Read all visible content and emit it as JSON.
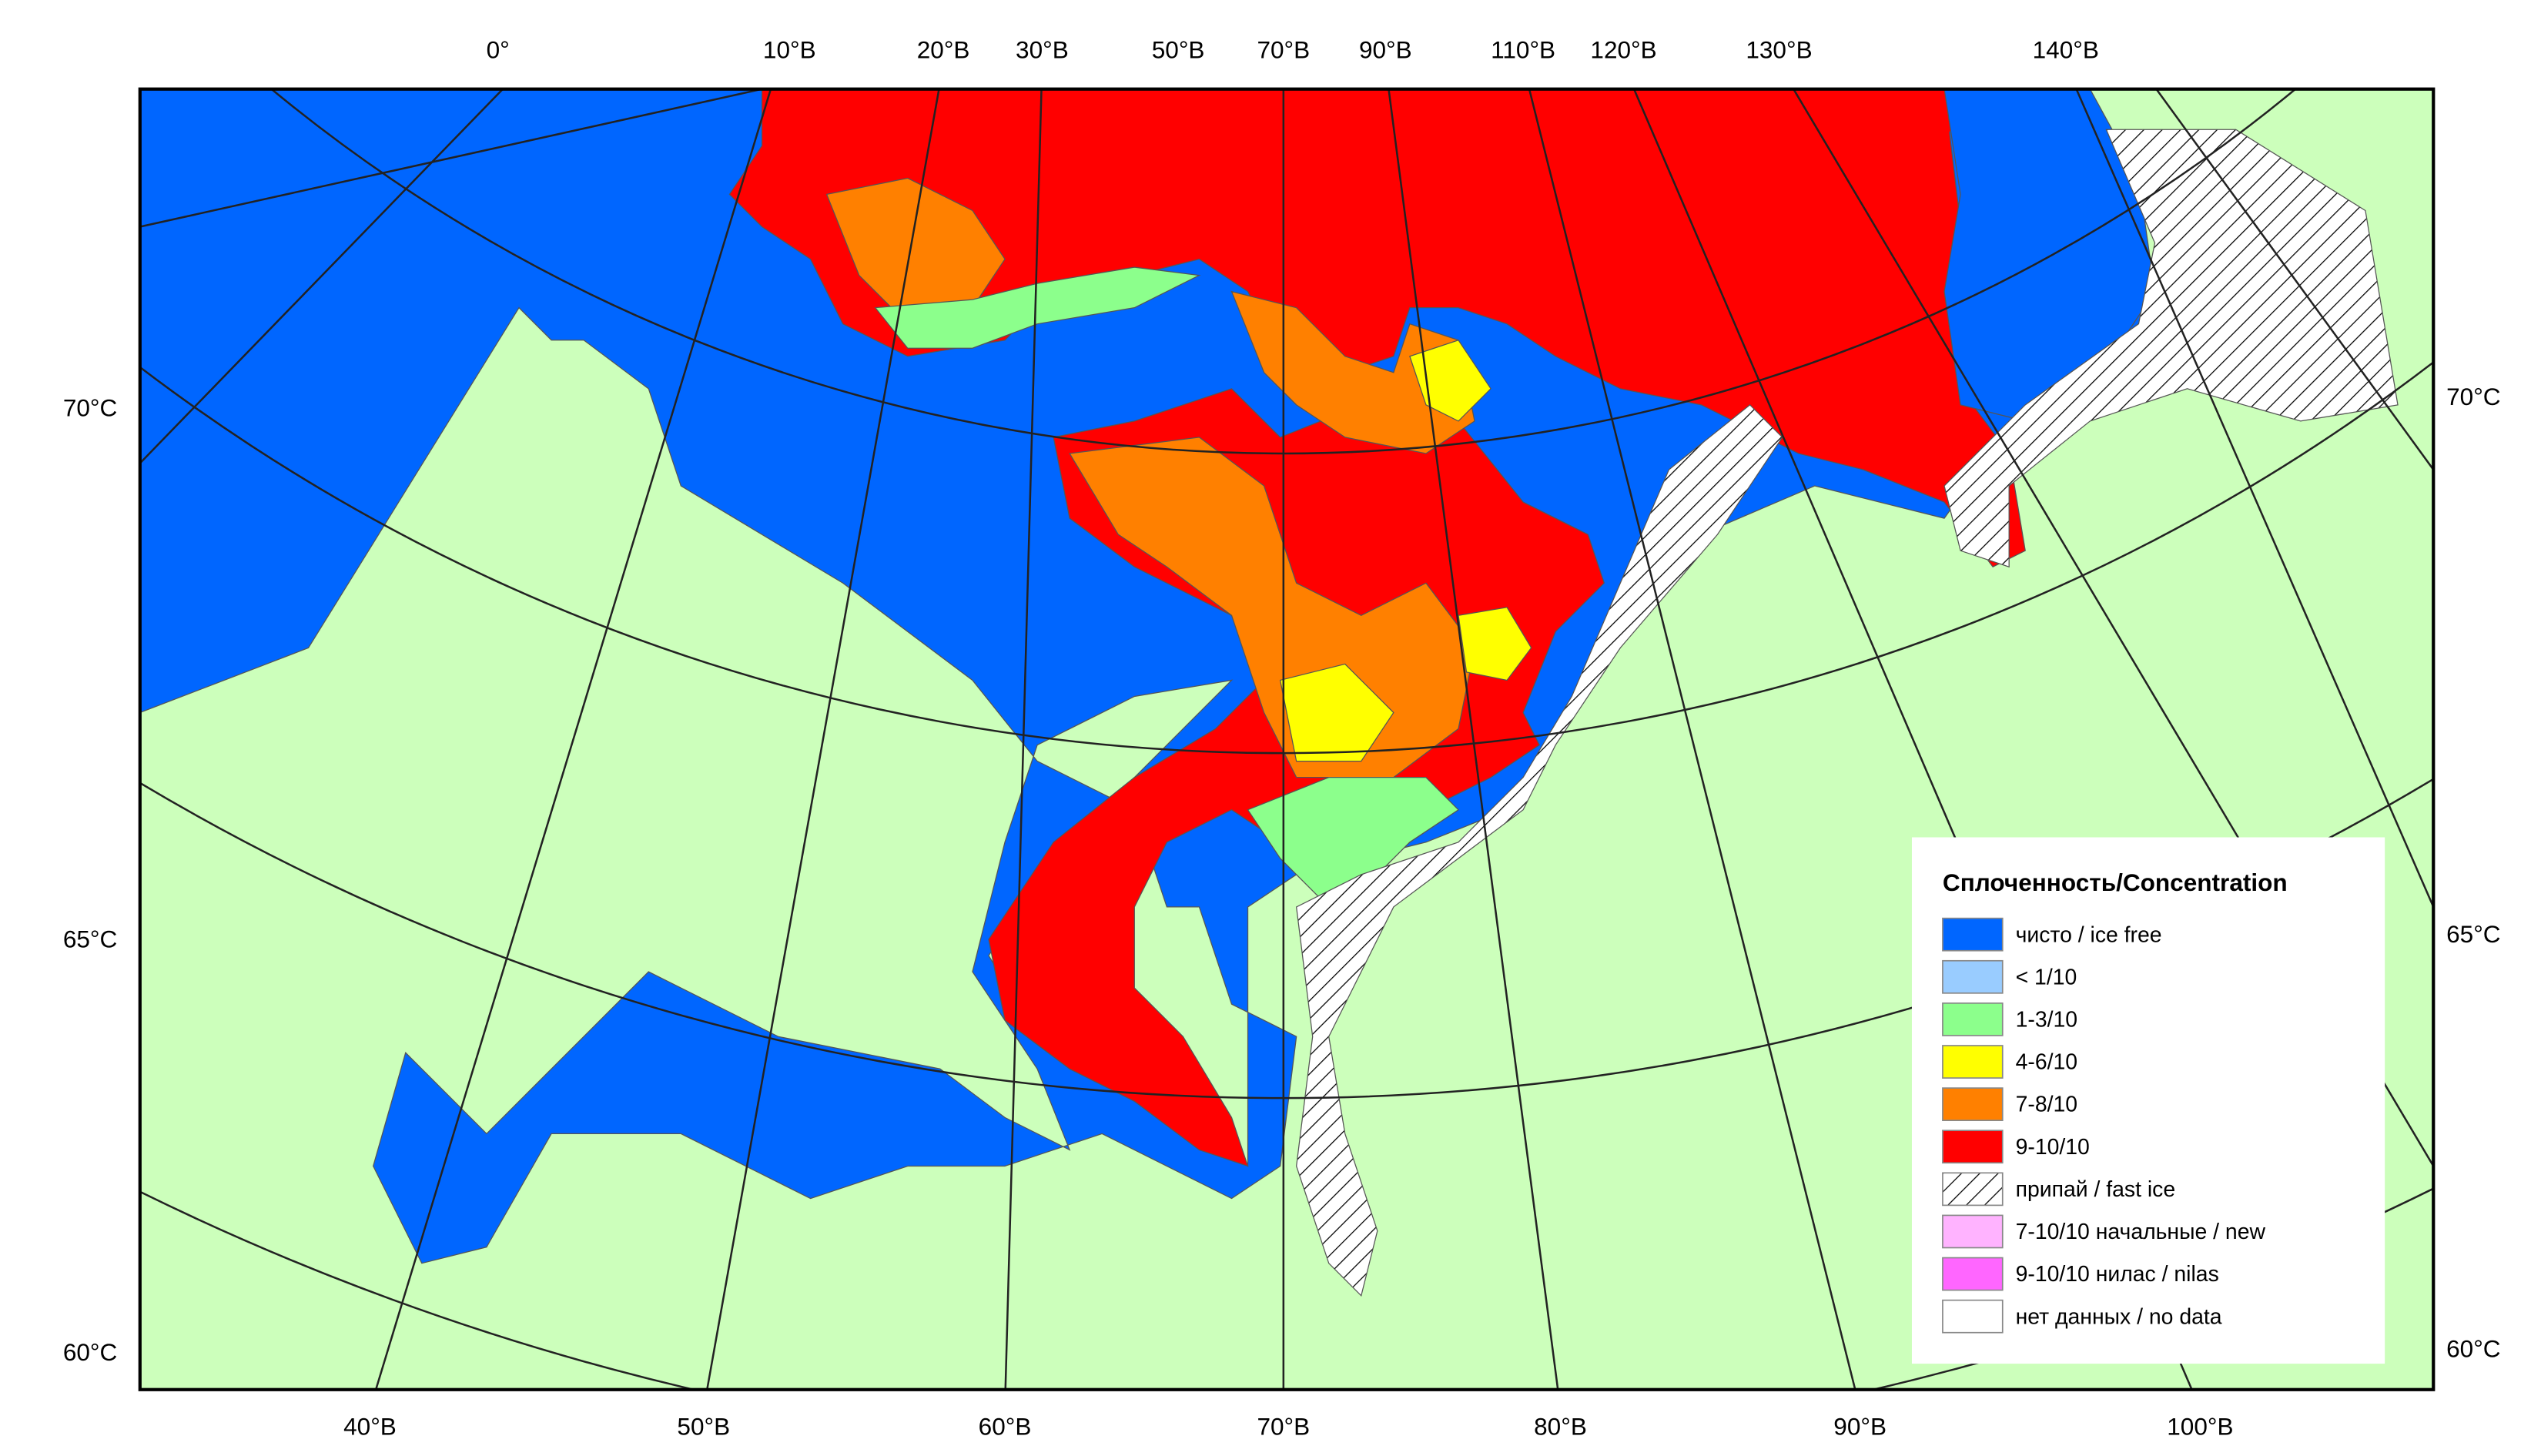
{
  "map": {
    "top_labels": [
      "0°",
      "10°В",
      "20°В",
      "30°В",
      "50°В",
      "70°В",
      "90°В",
      "110°В",
      "120°В",
      "130°В",
      "140°В"
    ],
    "bottom_labels": [
      "40°В",
      "50°В",
      "60°В",
      "70°В",
      "80°В",
      "90°В",
      "100°В"
    ],
    "left_labels": [
      "70°С",
      "65°С",
      "60°С"
    ],
    "right_labels": [
      "70°С",
      "65°С",
      "60°С"
    ]
  },
  "legend": {
    "title": "Сплоченность/Concentration",
    "items": [
      {
        "label": "чисто / ice free",
        "color": "#0066ff"
      },
      {
        "label": "< 1/10",
        "color": "#99ccff"
      },
      {
        "label": "1-3/10",
        "color": "#8cff8c"
      },
      {
        "label": "4-6/10",
        "color": "#ffff00"
      },
      {
        "label": "7-8/10",
        "color": "#ff8000"
      },
      {
        "label": "9-10/10",
        "color": "#ff0000"
      },
      {
        "label": "припай / fast ice",
        "color": "#ffffff",
        "hatch": true
      },
      {
        "label": "7-10/10 начальные / new",
        "color": "#ffb3ff"
      },
      {
        "label": "9-10/10 нилас / nilas",
        "color": "#ff66ff"
      },
      {
        "label": "нет данных / no data",
        "color": "#ffffff"
      }
    ]
  }
}
